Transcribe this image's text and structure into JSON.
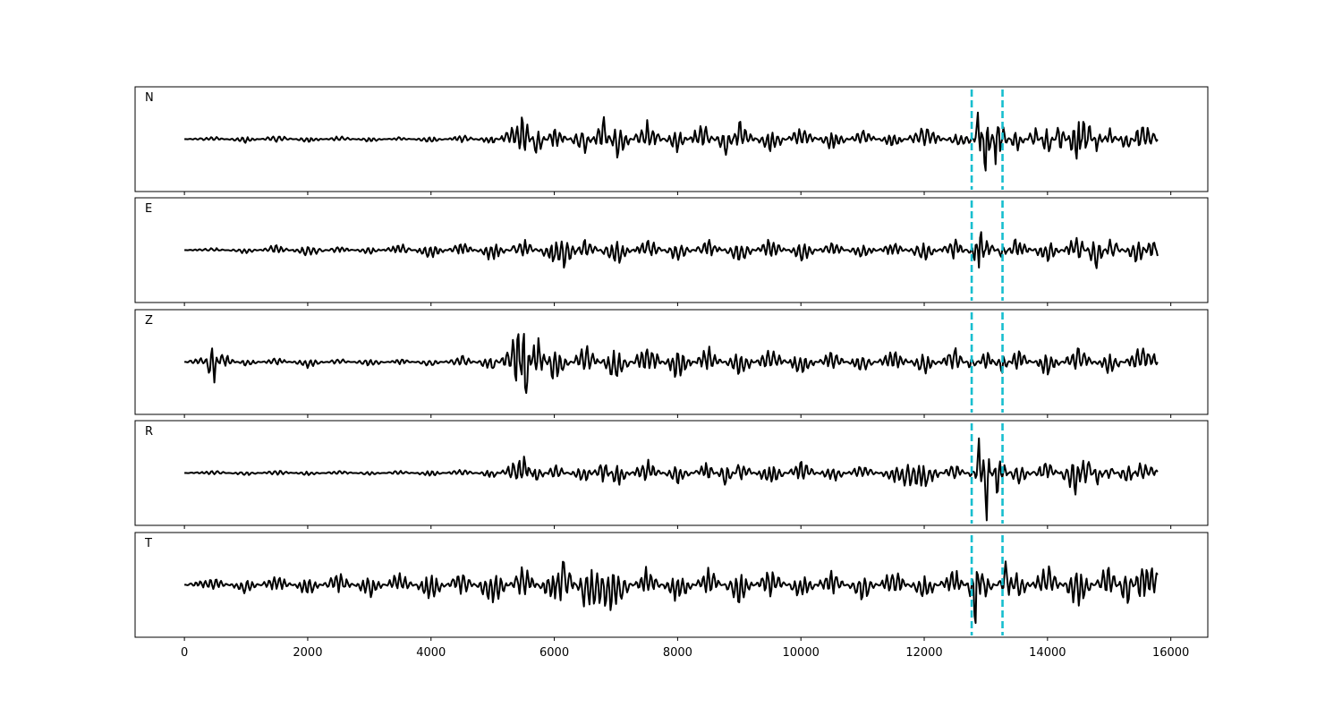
{
  "chart_data": {
    "type": "line",
    "layout": "stacked-subplots",
    "xlim": [
      -800,
      16600
    ],
    "x_ticks": [
      0,
      2000,
      4000,
      6000,
      8000,
      10000,
      12000,
      14000,
      16000
    ],
    "x_range": [
      0,
      15800
    ],
    "markers": {
      "x": [
        12770,
        13270
      ],
      "color": "#17becf",
      "style": "dashed"
    },
    "trace_color": "#000000",
    "grid": false,
    "legend": "none",
    "panels": [
      {
        "label": "N",
        "ylim": [
          -1.3,
          1.3
        ],
        "points": [
          [
            0,
            0
          ],
          [
            500,
            0.05
          ],
          [
            1000,
            -0.08
          ],
          [
            1500,
            0.1
          ],
          [
            2000,
            -0.08
          ],
          [
            2500,
            0.07
          ],
          [
            3000,
            -0.06
          ],
          [
            3500,
            0.05
          ],
          [
            4000,
            -0.08
          ],
          [
            4500,
            0.1
          ],
          [
            5000,
            -0.12
          ],
          [
            5300,
            0.25
          ],
          [
            5500,
            0.6
          ],
          [
            5700,
            -0.4
          ],
          [
            6000,
            0.3
          ],
          [
            6500,
            -0.35
          ],
          [
            6800,
            0.55
          ],
          [
            7000,
            -0.45
          ],
          [
            7500,
            0.4
          ],
          [
            8000,
            -0.3
          ],
          [
            8400,
            0.4
          ],
          [
            8800,
            -0.45
          ],
          [
            9000,
            0.45
          ],
          [
            9500,
            -0.35
          ],
          [
            10000,
            0.3
          ],
          [
            10500,
            -0.25
          ],
          [
            11000,
            0.2
          ],
          [
            11500,
            -0.2
          ],
          [
            12000,
            0.3
          ],
          [
            12500,
            -0.15
          ],
          [
            12770,
            -0.1
          ],
          [
            12850,
            0.3
          ],
          [
            12900,
            1.05
          ],
          [
            12950,
            -0.4
          ],
          [
            13000,
            -1.05
          ],
          [
            13100,
            0.2
          ],
          [
            13200,
            -1.05
          ],
          [
            13270,
            0.3
          ],
          [
            13500,
            -0.3
          ],
          [
            13800,
            0.3
          ],
          [
            14000,
            -0.45
          ],
          [
            14200,
            0.4
          ],
          [
            14400,
            -0.3
          ],
          [
            14500,
            -0.75
          ],
          [
            14600,
            0.75
          ],
          [
            14800,
            -0.3
          ],
          [
            15000,
            0.25
          ],
          [
            15300,
            -0.3
          ],
          [
            15500,
            0.45
          ],
          [
            15800,
            0.05
          ]
        ]
      },
      {
        "label": "E",
        "ylim": [
          -1.3,
          1.3
        ],
        "points": [
          [
            0,
            0
          ],
          [
            500,
            0.05
          ],
          [
            1000,
            -0.08
          ],
          [
            1500,
            0.12
          ],
          [
            2000,
            -0.15
          ],
          [
            2500,
            0.1
          ],
          [
            3000,
            -0.1
          ],
          [
            3500,
            0.15
          ],
          [
            4000,
            -0.2
          ],
          [
            4500,
            0.2
          ],
          [
            5000,
            -0.25
          ],
          [
            5500,
            0.25
          ],
          [
            6000,
            -0.3
          ],
          [
            6200,
            -0.4
          ],
          [
            6500,
            0.3
          ],
          [
            7000,
            -0.35
          ],
          [
            7500,
            0.3
          ],
          [
            8000,
            -0.25
          ],
          [
            8500,
            0.25
          ],
          [
            9000,
            -0.3
          ],
          [
            9500,
            0.3
          ],
          [
            10000,
            -0.25
          ],
          [
            10500,
            0.2
          ],
          [
            11000,
            -0.2
          ],
          [
            11500,
            0.2
          ],
          [
            12000,
            -0.25
          ],
          [
            12500,
            0.3
          ],
          [
            12770,
            -0.15
          ],
          [
            12850,
            -0.5
          ],
          [
            12900,
            1.15
          ],
          [
            12950,
            -0.45
          ],
          [
            13000,
            0.3
          ],
          [
            13270,
            -0.2
          ],
          [
            13500,
            0.3
          ],
          [
            14000,
            -0.3
          ],
          [
            14500,
            0.35
          ],
          [
            14800,
            -0.5
          ],
          [
            15000,
            0.3
          ],
          [
            15500,
            -0.35
          ],
          [
            15700,
            0.45
          ],
          [
            15800,
            -0.25
          ]
        ]
      },
      {
        "label": "Z",
        "ylim": [
          -1.3,
          1.3
        ],
        "points": [
          [
            0,
            0
          ],
          [
            300,
            0.1
          ],
          [
            450,
            -0.6
          ],
          [
            600,
            0.2
          ],
          [
            1000,
            -0.1
          ],
          [
            1500,
            0.1
          ],
          [
            2000,
            -0.12
          ],
          [
            2500,
            0.08
          ],
          [
            3000,
            -0.1
          ],
          [
            3500,
            0.08
          ],
          [
            4000,
            -0.1
          ],
          [
            4500,
            0.15
          ],
          [
            5000,
            -0.2
          ],
          [
            5300,
            0.4
          ],
          [
            5400,
            1.0
          ],
          [
            5500,
            -1.15
          ],
          [
            5700,
            0.65
          ],
          [
            6000,
            -0.5
          ],
          [
            6500,
            0.4
          ],
          [
            7000,
            -0.45
          ],
          [
            7500,
            0.45
          ],
          [
            8000,
            -0.4
          ],
          [
            8500,
            0.35
          ],
          [
            9000,
            -0.35
          ],
          [
            9500,
            0.35
          ],
          [
            10000,
            -0.3
          ],
          [
            10500,
            0.25
          ],
          [
            11000,
            -0.25
          ],
          [
            11500,
            0.3
          ],
          [
            12000,
            -0.3
          ],
          [
            12500,
            0.35
          ],
          [
            12770,
            -0.2
          ],
          [
            13000,
            0.3
          ],
          [
            13270,
            -0.3
          ],
          [
            13500,
            0.3
          ],
          [
            14000,
            -0.3
          ],
          [
            14500,
            0.35
          ],
          [
            15000,
            -0.3
          ],
          [
            15500,
            0.35
          ],
          [
            15800,
            0.1
          ]
        ]
      },
      {
        "label": "R",
        "ylim": [
          -1.3,
          1.3
        ],
        "points": [
          [
            0,
            0
          ],
          [
            500,
            0.05
          ],
          [
            1000,
            -0.06
          ],
          [
            1500,
            0.07
          ],
          [
            2000,
            -0.06
          ],
          [
            2500,
            0.06
          ],
          [
            3000,
            -0.05
          ],
          [
            3500,
            0.06
          ],
          [
            4000,
            -0.08
          ],
          [
            4500,
            0.1
          ],
          [
            5000,
            -0.12
          ],
          [
            5300,
            0.2
          ],
          [
            5500,
            0.4
          ],
          [
            5700,
            -0.25
          ],
          [
            6000,
            0.2
          ],
          [
            6500,
            -0.25
          ],
          [
            6800,
            0.35
          ],
          [
            7000,
            -0.3
          ],
          [
            7500,
            0.3
          ],
          [
            8000,
            -0.25
          ],
          [
            8500,
            0.25
          ],
          [
            8800,
            -0.35
          ],
          [
            9000,
            0.3
          ],
          [
            9500,
            -0.3
          ],
          [
            10000,
            0.25
          ],
          [
            10500,
            -0.2
          ],
          [
            11000,
            0.2
          ],
          [
            11500,
            -0.2
          ],
          [
            12000,
            -0.35
          ],
          [
            12500,
            0.25
          ],
          [
            12770,
            -0.1
          ],
          [
            12850,
            0.3
          ],
          [
            12900,
            0.95
          ],
          [
            12950,
            -0.3
          ],
          [
            13000,
            -1.1
          ],
          [
            13100,
            0.2
          ],
          [
            13200,
            -0.9
          ],
          [
            13270,
            0.25
          ],
          [
            13500,
            -0.3
          ],
          [
            14000,
            0.3
          ],
          [
            14400,
            -0.35
          ],
          [
            14500,
            -0.6
          ],
          [
            14600,
            0.65
          ],
          [
            14800,
            -0.3
          ],
          [
            15000,
            0.2
          ],
          [
            15300,
            -0.3
          ],
          [
            15500,
            0.25
          ],
          [
            15800,
            0.05
          ]
        ]
      },
      {
        "label": "T",
        "ylim": [
          -1.3,
          1.3
        ],
        "points": [
          [
            0,
            0
          ],
          [
            500,
            0.15
          ],
          [
            1000,
            -0.2
          ],
          [
            1500,
            0.25
          ],
          [
            2000,
            -0.25
          ],
          [
            2500,
            0.3
          ],
          [
            3000,
            -0.3
          ],
          [
            3500,
            0.3
          ],
          [
            4000,
            -0.35
          ],
          [
            4500,
            0.35
          ],
          [
            5000,
            -0.45
          ],
          [
            5500,
            0.4
          ],
          [
            6000,
            -0.45
          ],
          [
            6100,
            0.8
          ],
          [
            6500,
            -0.5
          ],
          [
            7000,
            -0.55
          ],
          [
            7500,
            0.4
          ],
          [
            8000,
            -0.4
          ],
          [
            8500,
            0.35
          ],
          [
            9000,
            -0.4
          ],
          [
            9500,
            0.4
          ],
          [
            10000,
            -0.35
          ],
          [
            10500,
            0.35
          ],
          [
            11000,
            -0.35
          ],
          [
            11500,
            0.35
          ],
          [
            12000,
            -0.35
          ],
          [
            12500,
            0.4
          ],
          [
            12770,
            -0.3
          ],
          [
            12850,
            -1.25
          ],
          [
            12900,
            0.85
          ],
          [
            13000,
            -0.3
          ],
          [
            13270,
            0.2
          ],
          [
            13300,
            0.8
          ],
          [
            13500,
            -0.4
          ],
          [
            14000,
            0.45
          ],
          [
            14500,
            -0.5
          ],
          [
            15000,
            0.5
          ],
          [
            15300,
            -0.55
          ],
          [
            15500,
            0.5
          ],
          [
            15800,
            0.35
          ]
        ]
      }
    ]
  }
}
